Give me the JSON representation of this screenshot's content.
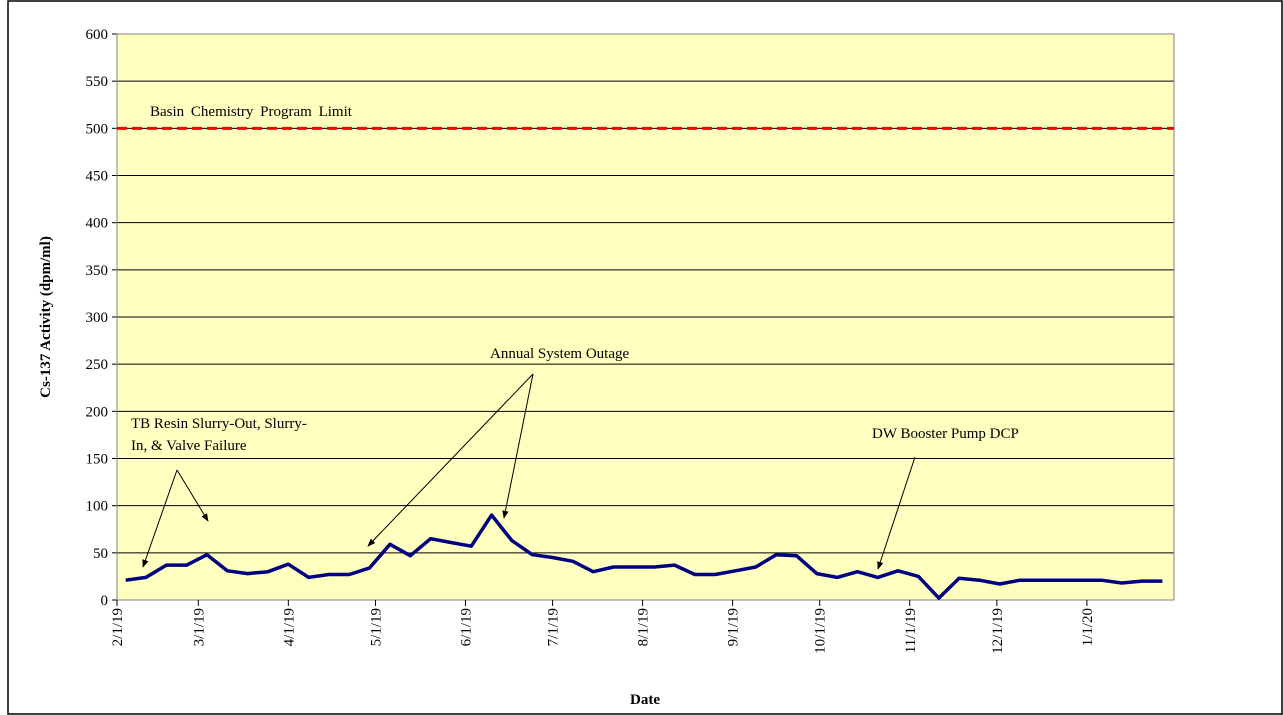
{
  "chart_data": {
    "type": "line",
    "x_label": "Date",
    "y_label": "Cs-137 Activity (dpm/ml)",
    "plot_background": "#ffffc0",
    "grid": true,
    "xlim": [
      "2019-02-01",
      "2020-01-31"
    ],
    "xticks": [
      {
        "value": "2019-02-01",
        "label": "2/1/19"
      },
      {
        "value": "2019-03-01",
        "label": "3/1/19"
      },
      {
        "value": "2019-04-01",
        "label": "4/1/19"
      },
      {
        "value": "2019-05-01",
        "label": "5/1/19"
      },
      {
        "value": "2019-06-01",
        "label": "6/1/19"
      },
      {
        "value": "2019-07-01",
        "label": "7/1/19"
      },
      {
        "value": "2019-08-01",
        "label": "8/1/19"
      },
      {
        "value": "2019-09-01",
        "label": "9/1/19"
      },
      {
        "value": "2019-10-01",
        "label": "10/1/19"
      },
      {
        "value": "2019-11-01",
        "label": "11/1/19"
      },
      {
        "value": "2019-12-01",
        "label": "12/1/19"
      },
      {
        "value": "2020-01-01",
        "label": "1/1/20"
      }
    ],
    "ylim": [
      0,
      600
    ],
    "yticks": [
      0,
      50,
      100,
      150,
      200,
      250,
      300,
      350,
      400,
      450,
      500,
      550,
      600
    ],
    "x": [
      "2019-02-04",
      "2019-02-11",
      "2019-02-18",
      "2019-02-25",
      "2019-03-04",
      "2019-03-11",
      "2019-03-18",
      "2019-03-25",
      "2019-04-01",
      "2019-04-08",
      "2019-04-15",
      "2019-04-22",
      "2019-04-29",
      "2019-05-06",
      "2019-05-13",
      "2019-05-20",
      "2019-05-27",
      "2019-06-03",
      "2019-06-10",
      "2019-06-17",
      "2019-06-24",
      "2019-07-01",
      "2019-07-08",
      "2019-07-15",
      "2019-07-22",
      "2019-07-29",
      "2019-08-05",
      "2019-08-12",
      "2019-08-19",
      "2019-08-26",
      "2019-09-02",
      "2019-09-09",
      "2019-09-16",
      "2019-09-23",
      "2019-09-30",
      "2019-10-07",
      "2019-10-14",
      "2019-10-21",
      "2019-10-28",
      "2019-11-04",
      "2019-11-11",
      "2019-11-18",
      "2019-11-25",
      "2019-12-02",
      "2019-12-09",
      "2019-12-16",
      "2019-12-23",
      "2019-12-30",
      "2020-01-06",
      "2020-01-13",
      "2020-01-20",
      "2020-01-27"
    ],
    "series": [
      {
        "color": "#000080",
        "values": [
          21,
          24,
          37,
          37,
          48,
          31,
          28,
          30,
          38,
          24,
          27,
          27,
          34,
          59,
          47,
          65,
          61,
          57,
          90,
          63,
          48,
          45,
          41,
          30,
          35,
          35,
          35,
          37,
          27,
          27,
          31,
          35,
          48,
          47,
          28,
          24,
          30,
          24,
          31,
          25,
          2,
          23,
          21,
          17,
          21,
          21,
          21,
          21,
          21,
          18,
          20,
          20
        ]
      }
    ],
    "limit": {
      "value": 500,
      "label": "Basin Chemistry Program Limit",
      "color": "#ff0000"
    },
    "annotations": [
      {
        "lines": [
          "TB Resin Slurry-Out, Slurry-",
          "In, & Valve Failure"
        ]
      },
      {
        "lines": [
          "Annual System Outage"
        ]
      },
      {
        "lines": [
          "DW Booster Pump DCP"
        ]
      }
    ]
  }
}
